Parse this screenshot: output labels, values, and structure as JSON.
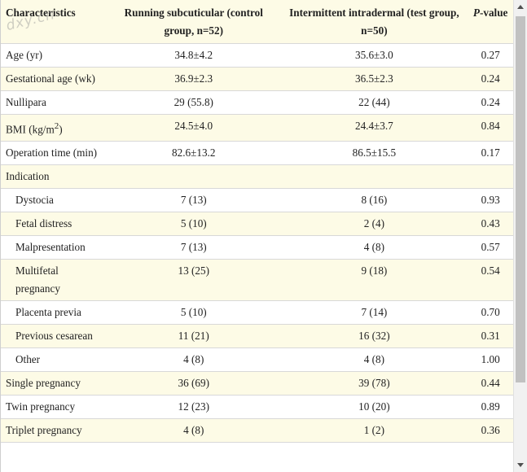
{
  "header": {
    "characteristics": "Characteristics",
    "control": "Running subcuticular (control group, n=52)",
    "test": "Intermittent intradermal (test group, n=50)",
    "p_value_label_italic": "P",
    "p_value_label_rest": "-value"
  },
  "watermark": "dxy.cn",
  "rows": [
    {
      "label": "Age (yr)",
      "control": "34.8±4.2",
      "test": "35.6±3.0",
      "p": "0.27"
    },
    {
      "label": "Gestational age (wk)",
      "control": "36.9±2.3",
      "test": "36.5±2.3",
      "p": "0.24"
    },
    {
      "label": "Nullipara",
      "control": "29 (55.8)",
      "test": "22 (44)",
      "p": "0.24"
    },
    {
      "label_main": "BMI (kg/m",
      "label_sup": "2",
      "label_end": ")",
      "control": "24.5±4.0",
      "test": "24.4±3.7",
      "p": "0.84"
    },
    {
      "label": "Operation time (min)",
      "control": "82.6±13.2",
      "test": "86.5±15.5",
      "p": "0.17"
    },
    {
      "label": "Indication",
      "control": "",
      "test": "",
      "p": ""
    },
    {
      "label": "Dystocia",
      "control": "7 (13)",
      "test": "8 (16)",
      "p": "0.93"
    },
    {
      "label": "Fetal distress",
      "control": "5 (10)",
      "test": "2 (4)",
      "p": "0.43"
    },
    {
      "label": "Malpresentation",
      "control": "7 (13)",
      "test": "4 (8)",
      "p": "0.57"
    },
    {
      "label": "Multifetal pregnancy",
      "control": "13 (25)",
      "test": "9 (18)",
      "p": "0.54"
    },
    {
      "label": "Placenta previa",
      "control": "5 (10)",
      "test": "7 (14)",
      "p": "0.70"
    },
    {
      "label": "Previous cesarean",
      "control": "11 (21)",
      "test": "16 (32)",
      "p": "0.31"
    },
    {
      "label": "Other",
      "control": "4 (8)",
      "test": "4 (8)",
      "p": "1.00"
    },
    {
      "label": "Single pregnancy",
      "control": "36 (69)",
      "test": "39 (78)",
      "p": "0.44"
    },
    {
      "label": "Twin pregnancy",
      "control": "12 (23)",
      "test": "10 (20)",
      "p": "0.89"
    },
    {
      "label": "Triplet pregnancy",
      "control": "4 (8)",
      "test": "1 (2)",
      "p": "0.36"
    }
  ]
}
